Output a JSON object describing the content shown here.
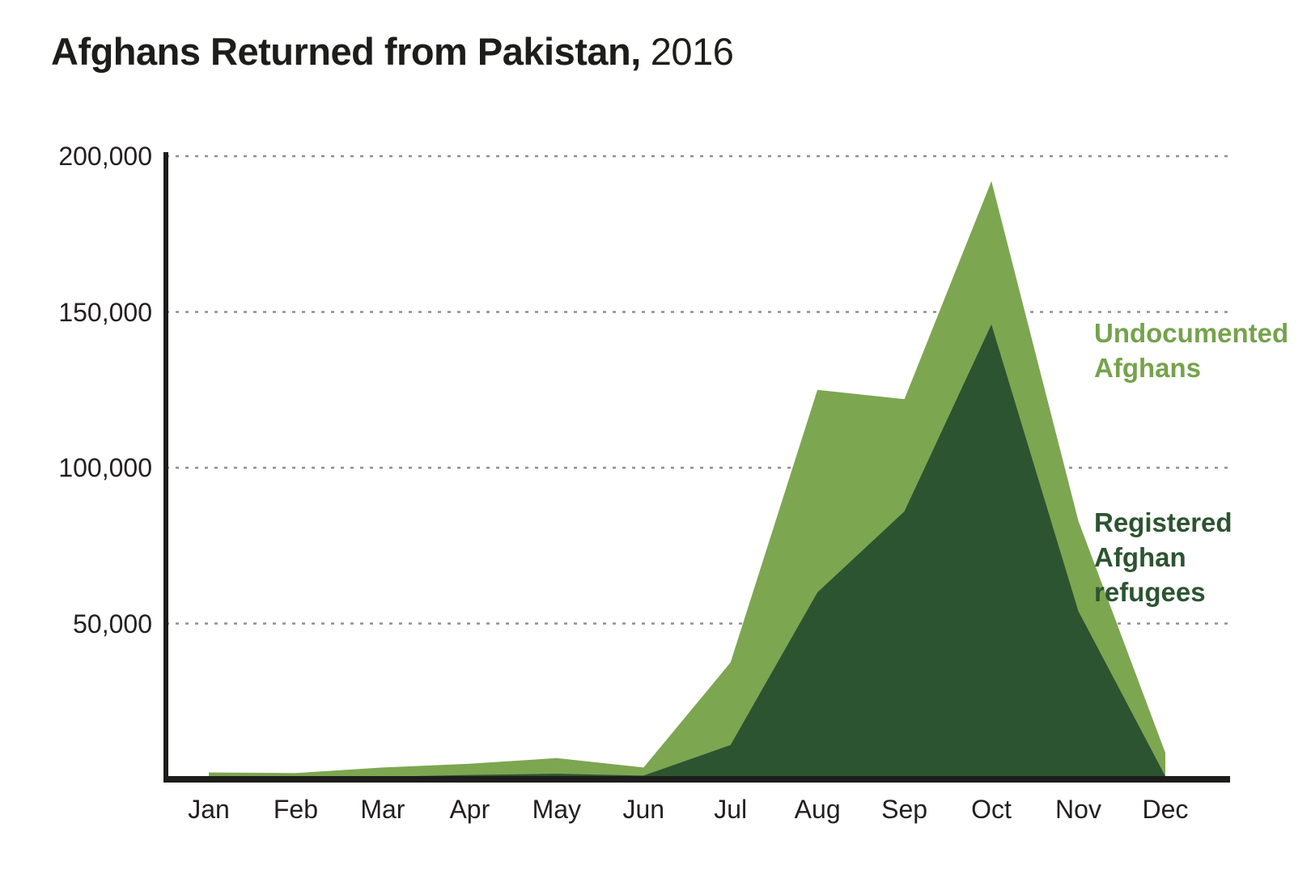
{
  "page": {
    "background": "#ffffff"
  },
  "title": {
    "bold": "Afghans Returned from Pakistan,",
    "year": "2016"
  },
  "chart_data": {
    "type": "area",
    "stacked": true,
    "title": "Afghans Returned from Pakistan, 2016",
    "xlabel": "",
    "ylabel": "",
    "categories": [
      "Jan",
      "Feb",
      "Mar",
      "Apr",
      "May",
      "Jun",
      "Jul",
      "Aug",
      "Sep",
      "Oct",
      "Nov",
      "Dec"
    ],
    "series": [
      {
        "name": "Registered Afghan refugees",
        "color": "#2C5431",
        "label_color": "#2C5431",
        "values": [
          300,
          300,
          800,
          1400,
          1800,
          1200,
          11000,
          60000,
          86000,
          146000,
          54000,
          1000
        ]
      },
      {
        "name": "Undocumented Afghans",
        "color": "#7DA651",
        "label_color": "#76A24C",
        "values": [
          1900,
          1700,
          3000,
          3600,
          5000,
          2600,
          26500,
          65000,
          36000,
          46000,
          29000,
          7500
        ]
      }
    ],
    "stacked_totals": [
      2200,
      2000,
      3800,
      5000,
      6800,
      3800,
      37500,
      125000,
      122000,
      192000,
      83000,
      8500
    ],
    "y_ticks": [
      {
        "label": "200,000",
        "value": 200000
      },
      {
        "label": "150,000",
        "value": 150000
      },
      {
        "label": "100,000",
        "value": 100000
      },
      {
        "label": "50,000",
        "value": 50000
      }
    ],
    "ylim": [
      0,
      200000
    ],
    "grid": "horizontal-dotted",
    "grid_color": "#8f8f8f",
    "axis_color": "#1d1d1b",
    "legend_position": "right-inside"
  }
}
